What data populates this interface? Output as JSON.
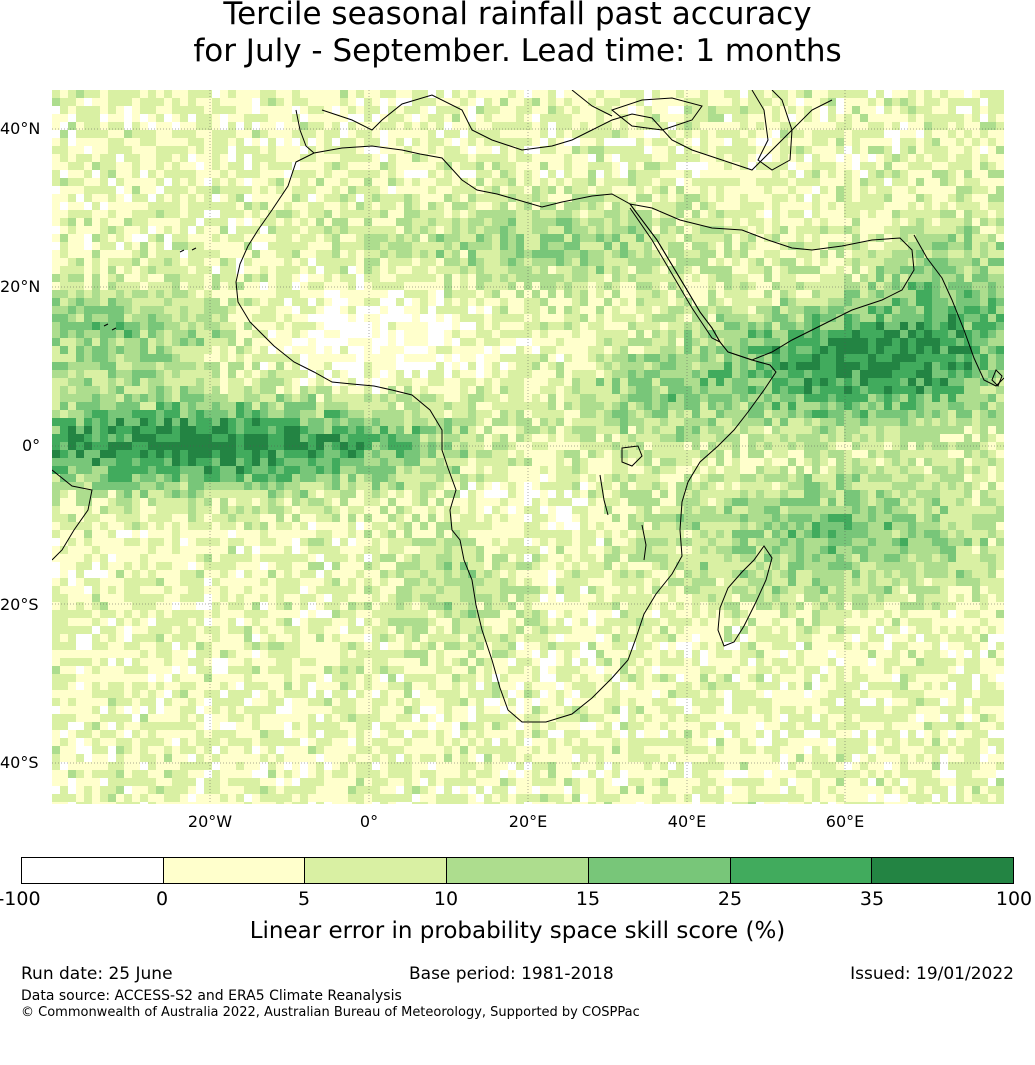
{
  "title": {
    "line1": "Tercile seasonal rainfall past accuracy",
    "line2": "for July - September. Lead time: 1 months"
  },
  "map": {
    "lat_labels": [
      "40°N",
      "20°N",
      "0°",
      "20°S",
      "40°S"
    ],
    "lon_labels": [
      "20°W",
      "0°",
      "20°E",
      "40°E",
      "60°E"
    ],
    "palette": [
      "#ffffff",
      "#ffffcc",
      "#d9f0a3",
      "#addd8e",
      "#78c679",
      "#41ab5d",
      "#238443"
    ]
  },
  "colorbar": {
    "ticks": [
      "-100",
      "0",
      "5",
      "10",
      "15",
      "25",
      "35",
      "100"
    ],
    "colors": [
      "#ffffff",
      "#ffffcc",
      "#d9f0a3",
      "#addd8e",
      "#78c679",
      "#41ab5d",
      "#238443"
    ],
    "label": "Linear error in probability space skill score (%)"
  },
  "footer": {
    "run_date": "Run date: 25 June",
    "base_period": "Base period: 1981-2018",
    "issued": "Issued: 19/01/2022",
    "data_source": "Data source: ACCESS-S2 and ERA5 Climate Reanalysis",
    "copyright": "© Commonwealth of Australia 2022, Australian Bureau of Meteorology, Supported by COSPPac"
  }
}
